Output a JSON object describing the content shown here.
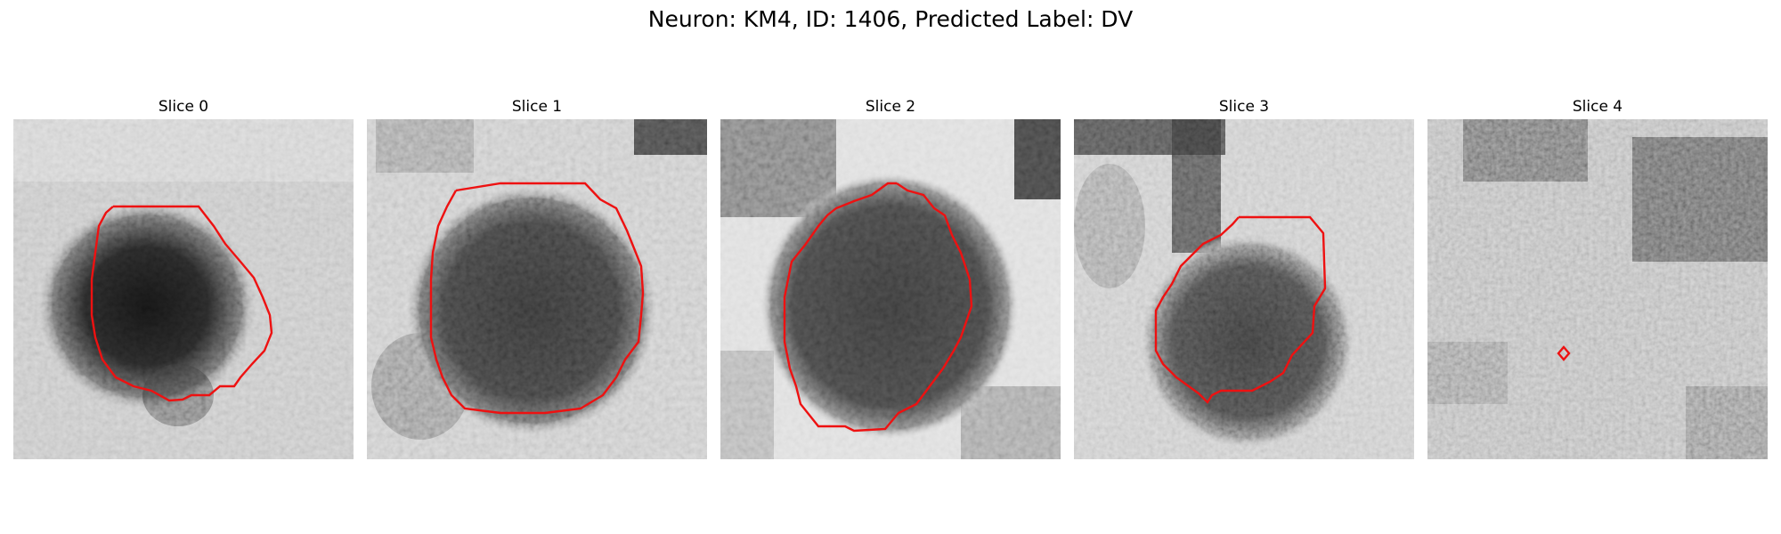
{
  "figure": {
    "title": "Neuron: KM4, ID: 1406, Predicted Label: DV"
  },
  "panels": [
    {
      "title": "Slice 0",
      "tone": "dark blob, rounded heart-like contour"
    },
    {
      "title": "Slice 1",
      "tone": "large dark round blob"
    },
    {
      "title": "Slice 2",
      "tone": "large dark round blob, bright surroundings"
    },
    {
      "title": "Slice 3",
      "tone": "dark blob shifted lower, vertical dark stripe above"
    },
    {
      "title": "Slice 4",
      "tone": "mostly mid-grey noise, tiny contour"
    }
  ],
  "colors": {
    "contour": "#ee1111",
    "background": "#ffffff"
  }
}
